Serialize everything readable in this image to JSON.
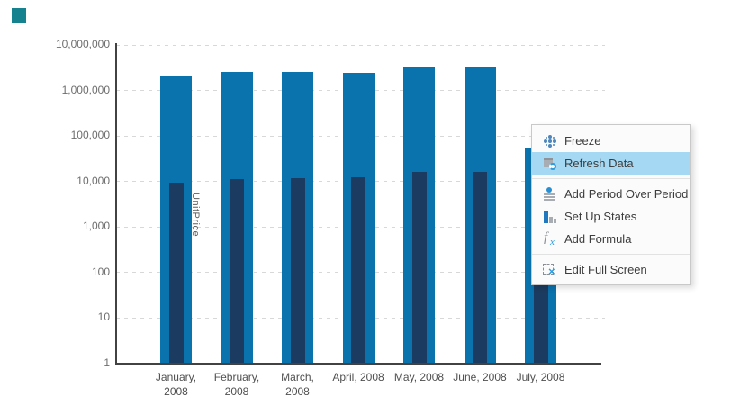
{
  "logo": {
    "color": "#17828f"
  },
  "chart_data": {
    "type": "bar",
    "title": "",
    "xlabel": "",
    "ylabel": "UnitPrice",
    "y_scale": "log",
    "ylim": [
      1,
      10000000
    ],
    "y_tick_labels": [
      "10,000,000",
      "1,000,000",
      "100,000",
      "10,000",
      "1,000",
      "100",
      "10",
      "1"
    ],
    "categories": [
      "January, 2008",
      "February, 2008",
      "March, 2008",
      "April, 2008",
      "May, 2008",
      "June, 2008",
      "July, 2008"
    ],
    "x_tick_label_lines": [
      [
        "January,",
        "2008"
      ],
      [
        "February,",
        "2008"
      ],
      [
        "March,",
        "2008"
      ],
      [
        "April, 2008"
      ],
      [
        "May, 2008"
      ],
      [
        "June, 2008"
      ],
      [
        "July, 2008"
      ]
    ],
    "grid": "dashed-horizontal-per-decade",
    "legend": "none",
    "series": [
      {
        "name": "",
        "color": "#0a72ad",
        "bar_width": "wide",
        "values": [
          2000000,
          2600000,
          2600000,
          2400000,
          3200000,
          3300000,
          53000
        ]
      },
      {
        "name": "UnitPrice",
        "color": "#1c3b60",
        "bar_width": "narrow",
        "values": [
          9500,
          11500,
          12000,
          12500,
          16500,
          16500,
          12000
        ]
      }
    ]
  },
  "context_menu": {
    "background": "#fbfbfb",
    "border_color": "#c9c9c9",
    "highlight_color": "#a5d8f3",
    "items": [
      {
        "label": "Freeze",
        "icon": "freeze-icon",
        "highlighted": false
      },
      {
        "label": "Refresh Data",
        "icon": "refresh-data-icon",
        "highlighted": true
      },
      {
        "separator": true
      },
      {
        "label": "Add Period Over Period",
        "icon": "calendar-period-icon",
        "highlighted": false
      },
      {
        "label": "Set Up States",
        "icon": "bar-chart-icon",
        "highlighted": false
      },
      {
        "label": "Add Formula",
        "icon": "formula-fx-icon",
        "highlighted": false
      },
      {
        "separator": true
      },
      {
        "label": "Edit Full Screen",
        "icon": "edit-full-screen-icon",
        "highlighted": false
      }
    ]
  }
}
